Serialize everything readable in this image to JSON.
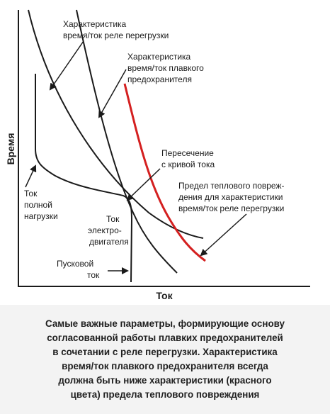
{
  "diagram": {
    "x_axis_label": "Ток",
    "y_axis_label": "Время",
    "labels": {
      "relay_curve": [
        "Характеристика",
        "время/ток реле перегрузки"
      ],
      "fuse_curve": [
        "Характеристика",
        "время/ток плавкого",
        "предохранителя"
      ],
      "intersection": [
        "Пересечение",
        "с кривой тока"
      ],
      "thermal_limit": [
        "Предел теплового повреж-",
        "дения для характеристики",
        "время/ток реле перегрузки"
      ],
      "full_load_current": [
        "Ток",
        "полной",
        "нагрузки"
      ],
      "motor_current": [
        "Ток",
        "электро-",
        "двигателя"
      ],
      "starting_current": [
        "Пусковой",
        "ток"
      ]
    },
    "colors": {
      "curves": "#1a1a1a",
      "thermal_limit_curve": "#d42020"
    }
  },
  "caption": [
    "Самые важные параметры, формирующие основу",
    "согласованной работы плавких предохранителей",
    "в сочетании с реле перегрузки. Характеристика",
    "время/ток плавкого предохранителя всегда",
    "должна быть ниже характеристики (красного",
    "цвета) предела теплового повреждения"
  ]
}
